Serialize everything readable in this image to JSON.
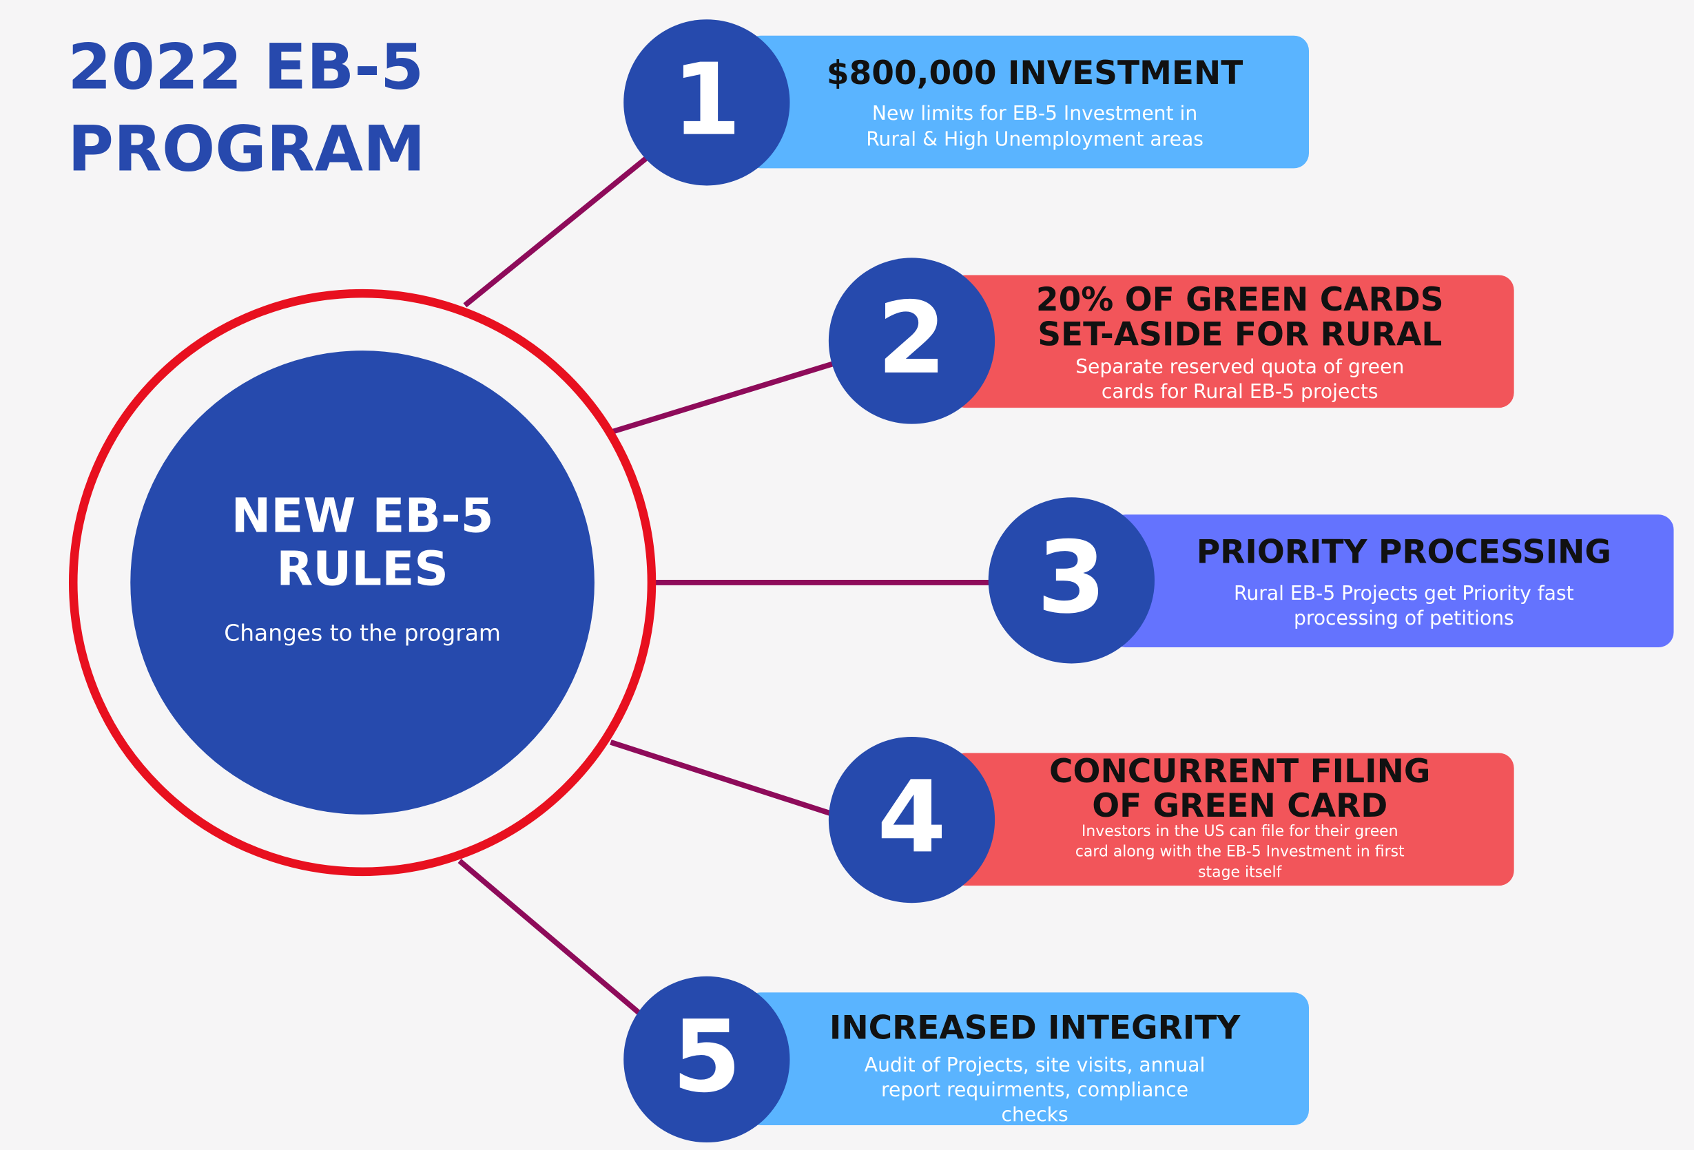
{
  "title": [
    "2022 EB-5",
    "PROGRAM"
  ],
  "center": {
    "title": [
      "NEW EB-5",
      "RULES"
    ],
    "subtitle": "Changes to the program"
  },
  "items": [
    {
      "number": "1",
      "color": "#5ab4ff",
      "title": [
        "$800,000 INVESTMENT"
      ],
      "description": [
        "New limits for EB-5 Investment in",
        "Rural & High Unemployment areas"
      ]
    },
    {
      "number": "2",
      "color": "#f2555a",
      "title": [
        "20% OF GREEN CARDS",
        "SET-ASIDE FOR RURAL"
      ],
      "description": [
        "Separate reserved quota of green",
        "cards for Rural EB-5 projects"
      ]
    },
    {
      "number": "3",
      "color": "#6473fe",
      "title": [
        "PRIORITY PROCESSING"
      ],
      "description": [
        "Rural EB-5 Projects get Priority fast",
        "processing of petitions"
      ]
    },
    {
      "number": "4",
      "color": "#f2555a",
      "title": [
        "CONCURRENT FILING",
        "OF GREEN CARD"
      ],
      "description": [
        "Investors in the US can file for their green",
        "card along with the EB-5 Investment in first",
        "stage itself"
      ]
    },
    {
      "number": "5",
      "color": "#5ab4ff",
      "title": [
        "INCREASED INTEGRITY"
      ],
      "description": [
        "Audit of Projects, site visits, annual",
        "report requirments, compliance",
        "checks"
      ]
    }
  ]
}
